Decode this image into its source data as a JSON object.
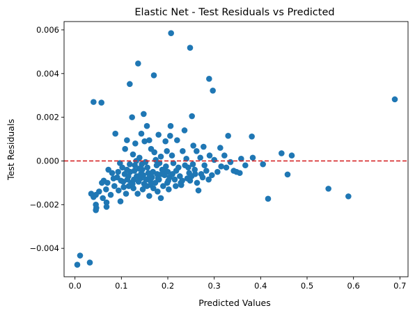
{
  "chart_data": {
    "type": "scatter",
    "title": "Elastic Net - Test Residuals vs Predicted",
    "xlabel": "Predicted Values",
    "ylabel": "Test Residuals",
    "xlim": [
      -0.0235,
      0.7175
    ],
    "ylim": [
      -0.0053,
      0.00638
    ],
    "xticks": [
      0.0,
      0.1,
      0.2,
      0.3,
      0.4,
      0.5,
      0.6,
      0.7
    ],
    "xtick_labels": [
      "0.0",
      "0.1",
      "0.2",
      "0.3",
      "0.4",
      "0.5",
      "0.6",
      "0.7"
    ],
    "yticks": [
      -0.004,
      -0.002,
      0.0,
      0.002,
      0.004,
      0.006
    ],
    "ytick_labels": [
      "−0.004",
      "−0.002",
      "0.000",
      "0.002",
      "0.004",
      "0.006"
    ],
    "grid": false,
    "reference_line": {
      "y": 0.0,
      "style": "dashed",
      "color": "#d62728"
    },
    "marker_color": "#1f77b4",
    "series": [
      {
        "points": [
          [
            0.207,
            0.00585
          ],
          [
            0.248,
            0.00518
          ],
          [
            0.136,
            0.00446
          ],
          [
            0.17,
            0.00392
          ],
          [
            0.289,
            0.00376
          ],
          [
            0.118,
            0.00352
          ],
          [
            0.297,
            0.00322
          ],
          [
            0.689,
            0.00282
          ],
          [
            0.04,
            0.0027
          ],
          [
            0.057,
            0.00267
          ],
          [
            0.148,
            0.00215
          ],
          [
            0.252,
            0.00205
          ],
          [
            0.123,
            0.002
          ],
          [
            0.206,
            0.0016
          ],
          [
            0.155,
            0.0016
          ],
          [
            0.18,
            0.0012
          ],
          [
            0.087,
            0.00125
          ],
          [
            0.143,
            0.00125
          ],
          [
            0.236,
            0.0014
          ],
          [
            0.381,
            0.00112
          ],
          [
            0.33,
            0.00115
          ],
          [
            0.112,
            0.00095
          ],
          [
            0.16,
            0.00095
          ],
          [
            0.195,
            0.0009
          ],
          [
            0.22,
            0.00095
          ],
          [
            0.205,
            0.00115
          ],
          [
            0.13,
            0.0008
          ],
          [
            0.15,
            0.0009
          ],
          [
            0.255,
            0.0007
          ],
          [
            0.277,
            0.00065
          ],
          [
            0.313,
            0.0006
          ],
          [
            0.108,
            0.00055
          ],
          [
            0.164,
            0.00055
          ],
          [
            0.198,
            0.00045
          ],
          [
            0.171,
            0.0004
          ],
          [
            0.232,
            0.00045
          ],
          [
            0.262,
            0.00045
          ],
          [
            0.445,
            0.00035
          ],
          [
            0.467,
            0.00025
          ],
          [
            0.29,
            0.00025
          ],
          [
            0.322,
            0.00025
          ],
          [
            0.358,
            0.0001
          ],
          [
            0.383,
            0.00015
          ],
          [
            0.125,
            0.0003
          ],
          [
            0.185,
            0.0002
          ],
          [
            0.209,
            0.00025
          ],
          [
            0.139,
            0.00015
          ],
          [
            0.24,
            0.0001
          ],
          [
            0.27,
            0.00015
          ],
          [
            0.3,
            5e-05
          ],
          [
            0.335,
            -5e-05
          ],
          [
            0.097,
            -0.0001
          ],
          [
            0.118,
            -0.00015
          ],
          [
            0.152,
            -5e-05
          ],
          [
            0.176,
            -0.0002
          ],
          [
            0.212,
            -0.0001
          ],
          [
            0.254,
            -0.00015
          ],
          [
            0.279,
            -0.0002
          ],
          [
            0.326,
            -0.0003
          ],
          [
            0.348,
            -0.0005
          ],
          [
            0.367,
            -0.0002
          ],
          [
            0.405,
            -0.00015
          ],
          [
            0.315,
            -0.00025
          ],
          [
            0.072,
            -0.0004
          ],
          [
            0.08,
            -0.00055
          ],
          [
            0.102,
            -0.0003
          ],
          [
            0.107,
            -0.0006
          ],
          [
            0.128,
            -0.00045
          ],
          [
            0.133,
            -0.0007
          ],
          [
            0.145,
            -0.0004
          ],
          [
            0.158,
            -0.00055
          ],
          [
            0.166,
            -0.00075
          ],
          [
            0.188,
            -0.0004
          ],
          [
            0.193,
            -0.00065
          ],
          [
            0.218,
            -0.00045
          ],
          [
            0.226,
            -0.0007
          ],
          [
            0.246,
            -0.00055
          ],
          [
            0.258,
            -0.0004
          ],
          [
            0.272,
            -0.0006
          ],
          [
            0.283,
            -0.00045
          ],
          [
            0.295,
            -0.00065
          ],
          [
            0.307,
            -0.0005
          ],
          [
            0.342,
            -0.00045
          ],
          [
            0.355,
            -0.00055
          ],
          [
            0.458,
            -0.00062
          ],
          [
            0.062,
            -0.0009
          ],
          [
            0.07,
            -0.001
          ],
          [
            0.083,
            -0.0008
          ],
          [
            0.091,
            -0.00075
          ],
          [
            0.099,
            -0.0009
          ],
          [
            0.113,
            -0.00085
          ],
          [
            0.121,
            -0.001
          ],
          [
            0.137,
            -0.00095
          ],
          [
            0.141,
            -0.0008
          ],
          [
            0.149,
            -0.00105
          ],
          [
            0.162,
            -0.0009
          ],
          [
            0.173,
            -0.001
          ],
          [
            0.181,
            -0.00085
          ],
          [
            0.19,
            -0.00115
          ],
          [
            0.201,
            -0.0009
          ],
          [
            0.215,
            -0.00085
          ],
          [
            0.228,
            -0.001
          ],
          [
            0.242,
            -0.0008
          ],
          [
            0.266,
            -0.00135
          ],
          [
            0.251,
            -0.0007
          ],
          [
            0.105,
            -0.0012
          ],
          [
            0.116,
            -0.00115
          ],
          [
            0.126,
            -0.00125
          ],
          [
            0.146,
            -0.0013
          ],
          [
            0.155,
            -0.00115
          ],
          [
            0.169,
            -0.00125
          ],
          [
            0.178,
            -0.0014
          ],
          [
            0.094,
            -0.00135
          ],
          [
            0.085,
            -0.00115
          ],
          [
            0.067,
            -0.0013
          ],
          [
            0.058,
            -0.001
          ],
          [
            0.052,
            -0.0014
          ],
          [
            0.045,
            -0.00155
          ],
          [
            0.077,
            -0.00155
          ],
          [
            0.11,
            -0.0015
          ],
          [
            0.135,
            -0.0015
          ],
          [
            0.16,
            -0.0016
          ],
          [
            0.185,
            -0.0017
          ],
          [
            0.098,
            -0.00185
          ],
          [
            0.06,
            -0.0017
          ],
          [
            0.068,
            -0.0019
          ],
          [
            0.035,
            -0.0015
          ],
          [
            0.04,
            -0.00165
          ],
          [
            0.045,
            -0.002
          ],
          [
            0.046,
            -0.00215
          ],
          [
            0.068,
            -0.0021
          ],
          [
            0.045,
            -0.00225
          ],
          [
            0.416,
            -0.00173
          ],
          [
            0.546,
            -0.00127
          ],
          [
            0.589,
            -0.00162
          ],
          [
            0.011,
            -0.00433
          ],
          [
            0.032,
            -0.00465
          ],
          [
            0.005,
            -0.00475
          ],
          [
            0.119,
            -0.0005
          ],
          [
            0.129,
            -0.0002
          ],
          [
            0.142,
            -0.0006
          ],
          [
            0.156,
            -0.0003
          ],
          [
            0.168,
            -0.0005
          ],
          [
            0.182,
            -0.0001
          ],
          [
            0.196,
            -0.00025
          ],
          [
            0.21,
            -0.0006
          ],
          [
            0.223,
            -0.0003
          ],
          [
            0.237,
            -0.0002
          ],
          [
            0.248,
            -0.0009
          ],
          [
            0.263,
            -0.001
          ],
          [
            0.275,
            -0.00075
          ],
          [
            0.288,
            -0.00085
          ],
          [
            0.132,
            0.0
          ],
          [
            0.144,
            -0.00015
          ],
          [
            0.174,
            5e-05
          ],
          [
            0.192,
            -0.00045
          ],
          [
            0.204,
            -0.00075
          ],
          [
            0.231,
            -0.0009
          ],
          [
            0.115,
            -0.0007
          ],
          [
            0.124,
            -0.00105
          ],
          [
            0.153,
            -0.00085
          ],
          [
            0.187,
            -0.0006
          ],
          [
            0.199,
            -0.001
          ],
          [
            0.217,
            -0.00115
          ],
          [
            0.229,
            -0.0011
          ],
          [
            0.112,
            -0.0004
          ],
          [
            0.138,
            -0.00035
          ],
          [
            0.161,
            -0.0007
          ],
          [
            0.177,
            -0.0006
          ],
          [
            0.2,
            -0.0005
          ],
          [
            0.244,
            -0.0003
          ],
          [
            0.259,
            -0.0006
          ],
          [
            0.093,
            -0.0005
          ],
          [
            0.104,
            -0.00095
          ],
          [
            0.127,
            -0.00085
          ],
          [
            0.147,
            -0.00065
          ],
          [
            0.163,
            -0.0011
          ],
          [
            0.179,
            -0.0008
          ],
          [
            0.202,
            -0.0013
          ]
        ]
      }
    ]
  }
}
